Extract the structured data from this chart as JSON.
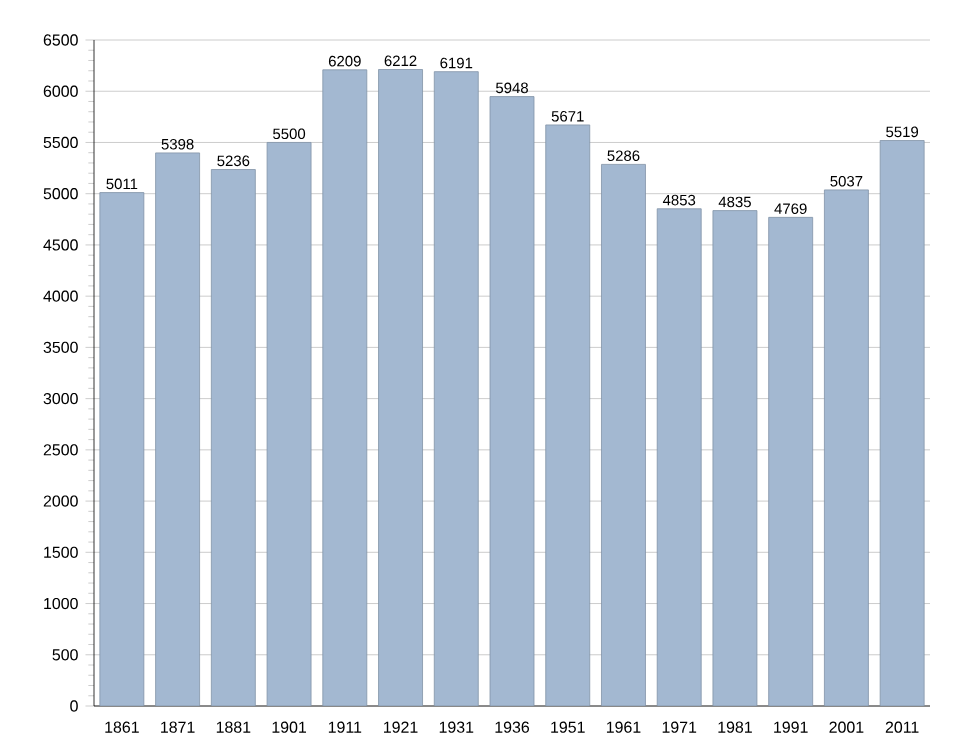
{
  "chart_data": {
    "type": "bar",
    "categories": [
      "1861",
      "1871",
      "1881",
      "1901",
      "1911",
      "1921",
      "1931",
      "1936",
      "1951",
      "1961",
      "1971",
      "1981",
      "1991",
      "2001",
      "2011"
    ],
    "values": [
      5011,
      5398,
      5236,
      5500,
      6209,
      6212,
      6191,
      5948,
      5671,
      5286,
      4853,
      4835,
      4769,
      5037,
      5519
    ],
    "color": "#a3b8d1",
    "ylim": [
      0,
      6500
    ],
    "yticks": [
      0,
      500,
      1000,
      1500,
      2000,
      2500,
      3000,
      3500,
      4000,
      4500,
      5000,
      5500,
      6000,
      6500
    ],
    "grid": "y",
    "data_labels": true
  }
}
